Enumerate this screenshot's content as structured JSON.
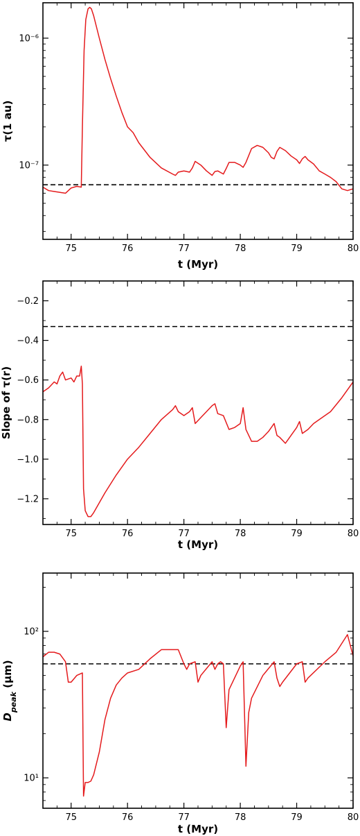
{
  "chart_data": [
    {
      "type": "line",
      "xlabel": "t (Myr)",
      "ylabel": "τ(1 au)",
      "yscale": "log",
      "xlim": [
        74.5,
        80
      ],
      "ylim": [
        2.6e-08,
        1.9e-06
      ],
      "xticks": [
        75,
        76,
        77,
        78,
        79,
        80
      ],
      "xtick_labels": [
        "75",
        "76",
        "77",
        "78",
        "79",
        "80"
      ],
      "yticks": [
        1e-07,
        1e-06
      ],
      "ytick_labels": [
        "10⁻⁷",
        "10⁻⁶"
      ],
      "reference_line": 7e-08,
      "colors": {
        "series": "#e41a1c",
        "reference": "#000000"
      },
      "series": [
        {
          "x": [
            74.5,
            74.6,
            74.7,
            74.8,
            74.9,
            75.0,
            75.1,
            75.18,
            75.2,
            75.23,
            75.26,
            75.3,
            75.33,
            75.36,
            75.4,
            75.5,
            75.6,
            75.7,
            75.8,
            75.9,
            76.0,
            76.1,
            76.2,
            76.4,
            76.6,
            76.8,
            76.85,
            76.9,
            77.0,
            77.1,
            77.15,
            77.2,
            77.3,
            77.4,
            77.5,
            77.55,
            77.6,
            77.7,
            77.75,
            77.8,
            77.9,
            78.0,
            78.05,
            78.1,
            78.2,
            78.3,
            78.4,
            78.5,
            78.55,
            78.6,
            78.65,
            78.7,
            78.8,
            78.9,
            79.0,
            79.05,
            79.1,
            79.15,
            79.2,
            79.3,
            79.4,
            79.5,
            79.6,
            79.7,
            79.8,
            79.9,
            80.0
          ],
          "y": [
            6.7e-08,
            6.3e-08,
            6.2e-08,
            6.1e-08,
            6e-08,
            6.6e-08,
            6.8e-08,
            6.7e-08,
            2e-07,
            8e-07,
            1.4e-06,
            1.7e-06,
            1.75e-06,
            1.7e-06,
            1.5e-06,
            1e-06,
            6.8e-07,
            4.8e-07,
            3.5e-07,
            2.6e-07,
            2e-07,
            1.8e-07,
            1.5e-07,
            1.15e-07,
            9.5e-08,
            8.5e-08,
            8.3e-08,
            8.8e-08,
            9e-08,
            8.8e-08,
            9.5e-08,
            1.07e-07,
            1e-07,
            9e-08,
            8.3e-08,
            8.9e-08,
            9e-08,
            8.5e-08,
            9.4e-08,
            1.05e-07,
            1.05e-07,
            1e-07,
            9.6e-08,
            1.05e-07,
            1.35e-07,
            1.43e-07,
            1.38e-07,
            1.25e-07,
            1.15e-07,
            1.12e-07,
            1.28e-07,
            1.38e-07,
            1.3e-07,
            1.18e-07,
            1.1e-07,
            1.03e-07,
            1.12e-07,
            1.17e-07,
            1.1e-07,
            1.02e-07,
            9e-08,
            8.5e-08,
            8e-08,
            7.4e-08,
            6.5e-08,
            6.3e-08,
            6.5e-08
          ]
        }
      ]
    },
    {
      "type": "line",
      "xlabel": "t (Myr)",
      "ylabel": "Slope of τ(r)",
      "yscale": "linear",
      "xlim": [
        74.5,
        80
      ],
      "ylim": [
        -1.33,
        -0.1
      ],
      "xticks": [
        75,
        76,
        77,
        78,
        79,
        80
      ],
      "xtick_labels": [
        "75",
        "76",
        "77",
        "78",
        "79",
        "80"
      ],
      "yticks": [
        -1.2,
        -1.0,
        -0.8,
        -0.6,
        -0.4,
        -0.2
      ],
      "ytick_labels": [
        "−1.2",
        "−1.0",
        "−0.8",
        "−0.6",
        "−0.4",
        "−0.2"
      ],
      "reference_line": -0.33,
      "colors": {
        "series": "#e41a1c",
        "reference": "#000000"
      },
      "series": [
        {
          "x": [
            74.5,
            74.6,
            74.7,
            74.75,
            74.8,
            74.85,
            74.9,
            75.0,
            75.05,
            75.1,
            75.15,
            75.18,
            75.2,
            75.22,
            75.25,
            75.3,
            75.35,
            75.4,
            75.5,
            75.6,
            75.8,
            76.0,
            76.2,
            76.4,
            76.6,
            76.8,
            76.85,
            76.9,
            77.0,
            77.1,
            77.15,
            77.2,
            77.3,
            77.4,
            77.5,
            77.55,
            77.6,
            77.7,
            77.8,
            77.9,
            78.0,
            78.05,
            78.1,
            78.2,
            78.3,
            78.4,
            78.5,
            78.6,
            78.65,
            78.7,
            78.8,
            78.9,
            79.0,
            79.05,
            79.1,
            79.2,
            79.3,
            79.4,
            79.6,
            79.8,
            80.0
          ],
          "y": [
            -0.66,
            -0.64,
            -0.61,
            -0.62,
            -0.58,
            -0.56,
            -0.6,
            -0.59,
            -0.61,
            -0.58,
            -0.58,
            -0.53,
            -0.62,
            -1.15,
            -1.26,
            -1.29,
            -1.29,
            -1.27,
            -1.22,
            -1.17,
            -1.08,
            -1.0,
            -0.94,
            -0.87,
            -0.8,
            -0.75,
            -0.73,
            -0.76,
            -0.78,
            -0.76,
            -0.74,
            -0.82,
            -0.79,
            -0.76,
            -0.73,
            -0.72,
            -0.77,
            -0.78,
            -0.85,
            -0.84,
            -0.82,
            -0.74,
            -0.85,
            -0.91,
            -0.91,
            -0.89,
            -0.86,
            -0.82,
            -0.88,
            -0.89,
            -0.92,
            -0.88,
            -0.84,
            -0.81,
            -0.87,
            -0.85,
            -0.82,
            -0.8,
            -0.76,
            -0.69,
            -0.61
          ]
        }
      ]
    },
    {
      "type": "line",
      "xlabel": "t (Myr)",
      "ylabel": "D_peak (μm)",
      "yscale": "log",
      "xlim": [
        74.5,
        80
      ],
      "ylim": [
        6.2,
        250
      ],
      "xticks": [
        75,
        76,
        77,
        78,
        79,
        80
      ],
      "xtick_labels": [
        "75",
        "76",
        "77",
        "78",
        "79",
        "80"
      ],
      "yticks": [
        10,
        100
      ],
      "ytick_labels": [
        "10¹",
        "10²"
      ],
      "reference_line": 60,
      "colors": {
        "series": "#e41a1c",
        "reference": "#000000"
      },
      "series": [
        {
          "x": [
            74.5,
            74.6,
            74.7,
            74.8,
            74.9,
            74.95,
            75.0,
            75.1,
            75.2,
            75.22,
            75.25,
            75.3,
            75.35,
            75.4,
            75.5,
            75.6,
            75.7,
            75.8,
            75.9,
            76.0,
            76.2,
            76.4,
            76.6,
            76.7,
            76.9,
            77.0,
            77.05,
            77.1,
            77.2,
            77.25,
            77.3,
            77.5,
            77.55,
            77.6,
            77.65,
            77.7,
            77.75,
            77.8,
            78.0,
            78.05,
            78.1,
            78.15,
            78.2,
            78.4,
            78.6,
            78.65,
            78.7,
            78.75,
            79.0,
            79.1,
            79.15,
            79.2,
            79.5,
            79.7,
            79.9,
            80.0
          ],
          "y": [
            67,
            72,
            72,
            70,
            62,
            45,
            45,
            50,
            52,
            7.5,
            9.3,
            9.3,
            9.5,
            10.5,
            15,
            25,
            35,
            43,
            48,
            52,
            55,
            65,
            75,
            75,
            75,
            60,
            55,
            60,
            62,
            45,
            50,
            62,
            55,
            60,
            62,
            60,
            22,
            40,
            58,
            62,
            12,
            28,
            35,
            50,
            62,
            48,
            42,
            45,
            60,
            62,
            45,
            48,
            62,
            72,
            95,
            68
          ]
        }
      ]
    }
  ]
}
